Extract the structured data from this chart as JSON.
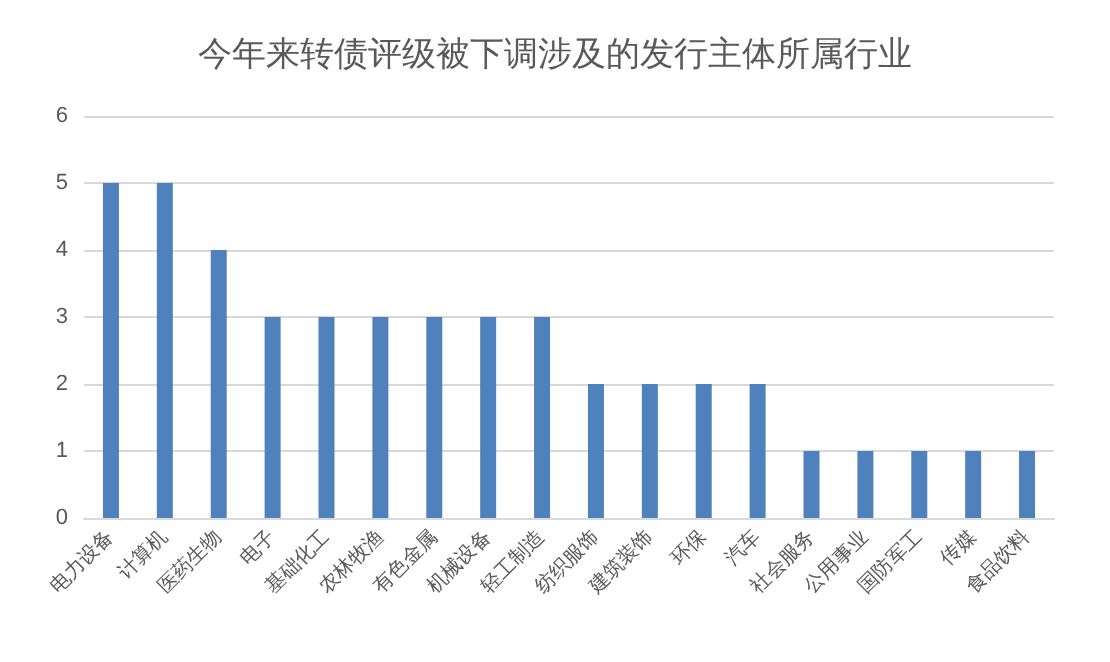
{
  "chart_data": {
    "type": "bar",
    "title": "今年来转债评级被下调涉及的发行主体所属行业",
    "categories": [
      "电力设备",
      "计算机",
      "医药生物",
      "电子",
      "基础化工",
      "农林牧渔",
      "有色金属",
      "机械设备",
      "轻工制造",
      "纺织服饰",
      "建筑装饰",
      "环保",
      "汽车",
      "社会服务",
      "公用事业",
      "国防军工",
      "传媒",
      "食品饮料"
    ],
    "values": [
      5,
      5,
      4,
      3,
      3,
      3,
      3,
      3,
      3,
      2,
      2,
      2,
      2,
      1,
      1,
      1,
      1,
      1
    ],
    "color": "#4f81bd",
    "ylim": [
      0,
      6
    ],
    "yticks": [
      0,
      1,
      2,
      3,
      4,
      5,
      6
    ],
    "grid": "y"
  }
}
